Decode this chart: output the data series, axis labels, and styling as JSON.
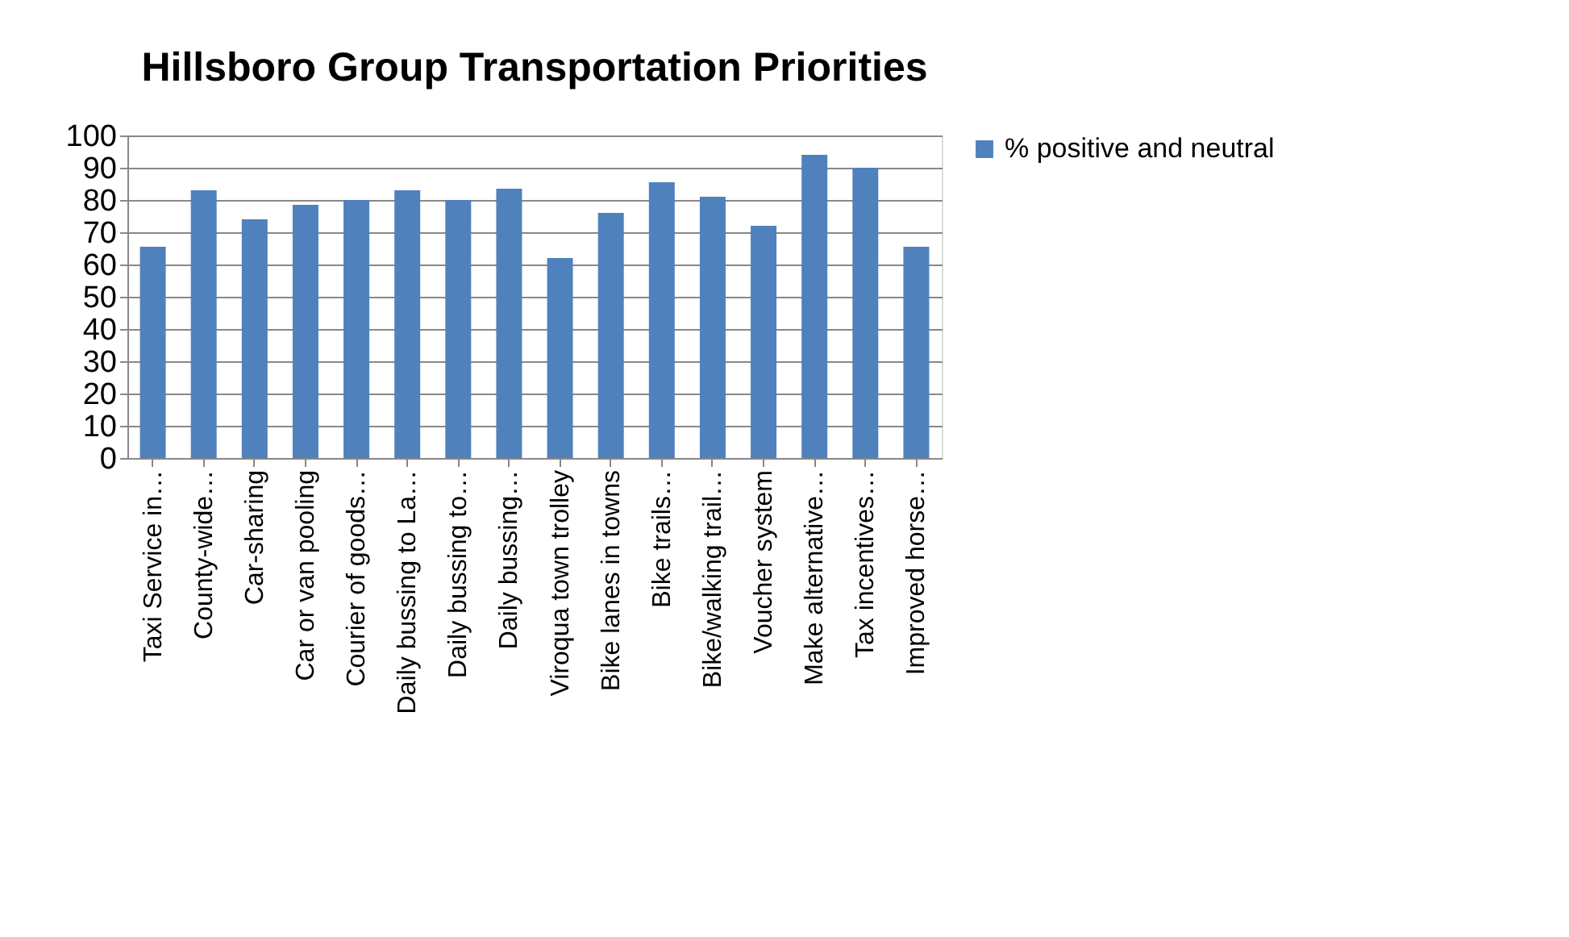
{
  "chart_data": {
    "type": "bar",
    "title": "Hillsboro Group Transportation Priorities",
    "categories": [
      "Taxi Service in…",
      "County-wide…",
      "Car-sharing",
      "Car or van pooling",
      "Courier of goods…",
      "Daily bussing to La…",
      "Daily bussing to…",
      "Daily bussing…",
      "Viroqua town trolley",
      "Bike lanes in towns",
      "Bike trails…",
      "Bike/walking trail…",
      "Voucher system",
      "Make alternative…",
      "Tax incentives…",
      "Improved horse…"
    ],
    "series": [
      {
        "name": "% positive and neutral",
        "color": "#4f81bd",
        "values": [
          65.5,
          83,
          74,
          78.5,
          80,
          83,
          80,
          83.5,
          62,
          76,
          85.5,
          81,
          72,
          94,
          90,
          65.5
        ]
      }
    ],
    "ylim": [
      0,
      100
    ],
    "yticks": [
      0,
      10,
      20,
      30,
      40,
      50,
      60,
      70,
      80,
      90,
      100
    ],
    "grid": "y",
    "legend": "right"
  }
}
